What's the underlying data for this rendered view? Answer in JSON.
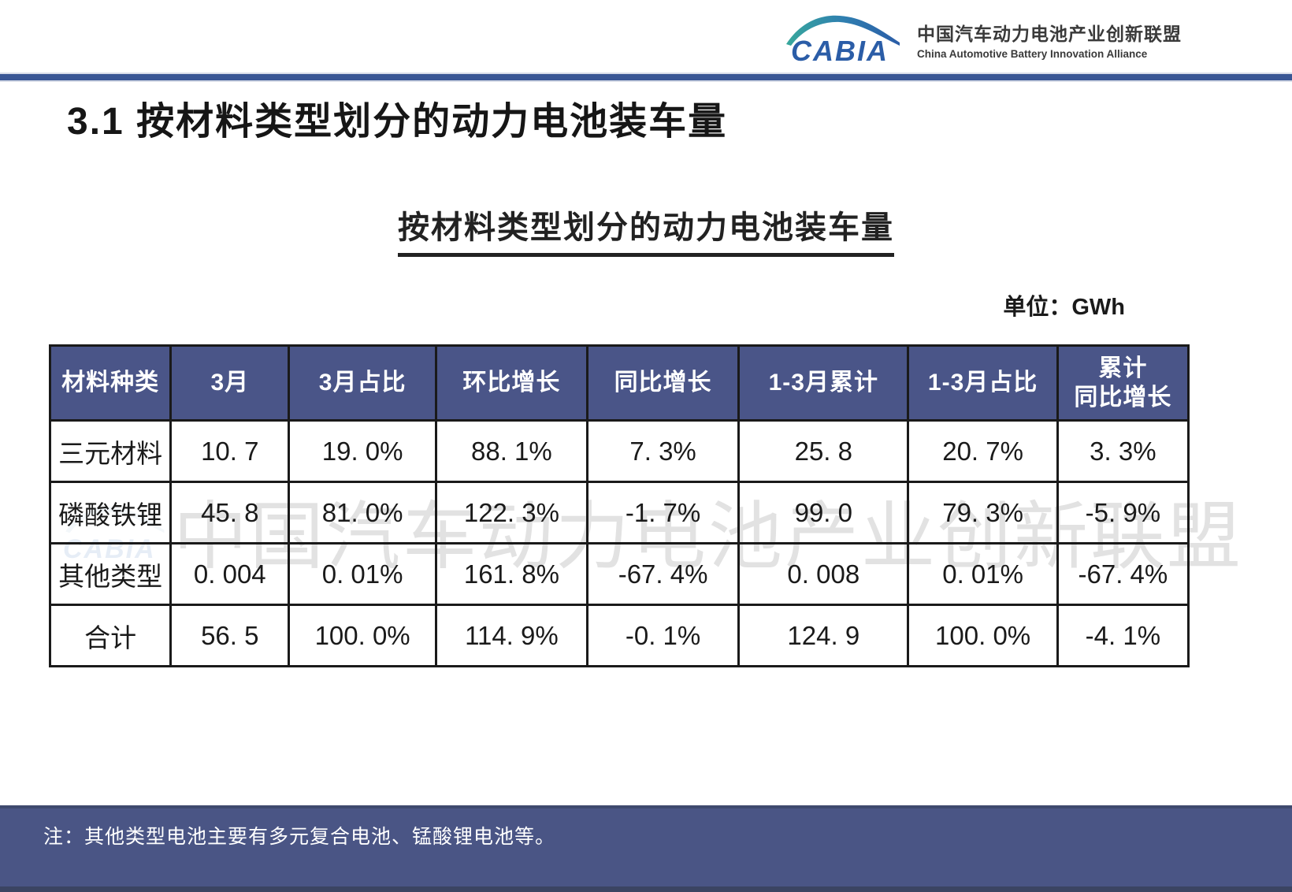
{
  "header": {
    "logo": {
      "wordmark": "CABIA",
      "org_name_cn": "中国汽车动力电池产业创新联盟",
      "org_name_en": "China Automotive Battery Innovation Alliance"
    }
  },
  "title": "3.1 按材料类型划分的动力电池装车量",
  "subtitle": "按材料类型划分的动力电池装车量",
  "unit_label": "单位：GWh",
  "table": {
    "headers": [
      "材料种类",
      "3月",
      "3月占比",
      "环比增长",
      "同比增长",
      "1-3月累计",
      "1-3月占比",
      "累计\n同比增长"
    ],
    "rows": [
      [
        "三元材料",
        "10. 7",
        "19. 0%",
        "88. 1%",
        "7. 3%",
        "25. 8",
        "20. 7%",
        "3. 3%"
      ],
      [
        "磷酸铁锂",
        "45. 8",
        "81. 0%",
        "122. 3%",
        "-1. 7%",
        "99. 0",
        "79. 3%",
        "-5. 9%"
      ],
      [
        "其他类型",
        "0. 004",
        "0. 01%",
        "161. 8%",
        "-67. 4%",
        "0. 008",
        "0. 01%",
        "-67. 4%"
      ],
      [
        "合计",
        "56. 5",
        "100. 0%",
        "114. 9%",
        "-0. 1%",
        "124. 9",
        "100. 0%",
        "-4. 1%"
      ]
    ]
  },
  "watermark": {
    "wordmark": "CABIA",
    "text": "中国汽车动力电池产业创新联盟"
  },
  "footer": {
    "note": "注：其他类型电池主要有多元复合电池、锰酸锂电池等。"
  },
  "colors": {
    "rule_blue": "#3a5795",
    "table_header_bg": "#4a5588",
    "footer_bg": "#4a5585",
    "logo_blue": "#2b5da7",
    "logo_teal": "#38a89c",
    "watermark_gray": "#e2e2e2"
  }
}
